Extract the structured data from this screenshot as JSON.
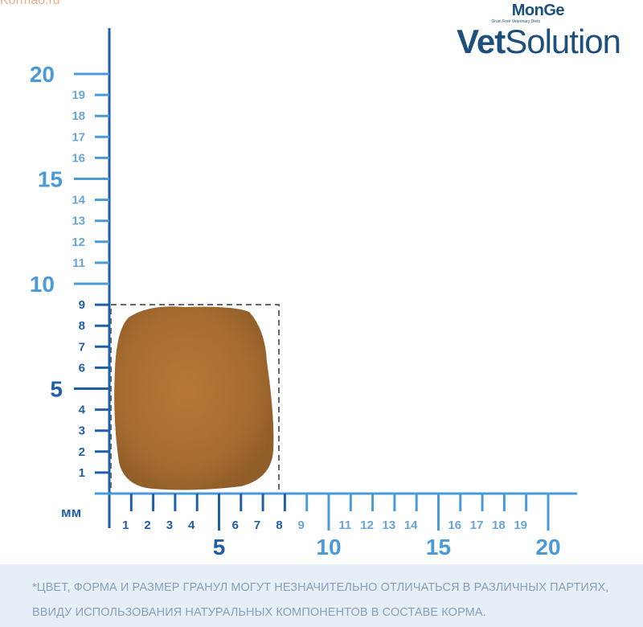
{
  "watermark": "Kormao.ru",
  "brand": {
    "small_logo": "MonGe",
    "tagline": "Grain Free Veterinary Diets",
    "product_bold": "Vet",
    "product_light": "Solution"
  },
  "ruler": {
    "unit_label": "мм",
    "y_small_labels": [
      "1",
      "2",
      "3",
      "4",
      "6",
      "7",
      "8",
      "9",
      "11",
      "12",
      "13",
      "14",
      "16",
      "17",
      "18",
      "19"
    ],
    "y_big_labels": [
      "5",
      "10",
      "15",
      "20"
    ],
    "x_small_labels": [
      "1",
      "2",
      "3",
      "4",
      "6",
      "7",
      "8",
      "9",
      "11",
      "12",
      "13",
      "14",
      "16",
      "17",
      "18",
      "19"
    ],
    "x_big_labels": [
      "5",
      "10",
      "15",
      "20"
    ],
    "kibble_width_mm": 8,
    "kibble_height_mm": 9
  },
  "colors": {
    "axis": "#1f5fa8",
    "axis_light": "#6aa5d8",
    "kibble": "#a8682a",
    "footer_bg": "#e6eef7"
  },
  "footer": {
    "line1": "*ЦВЕТ, ФОРМА И РАЗМЕР ГРАНУЛ МОГУТ НЕЗНАЧИТЕЛЬНО ОТЛИЧАТЬСЯ В РАЗЛИЧНЫХ ПАРТИЯХ,",
    "line2": "ВВИДУ ИСПОЛЬЗОВАНИЯ НАТУРАЛЬНЫХ КОМПОНЕНТОВ В СОСТАВЕ КОРМА."
  }
}
